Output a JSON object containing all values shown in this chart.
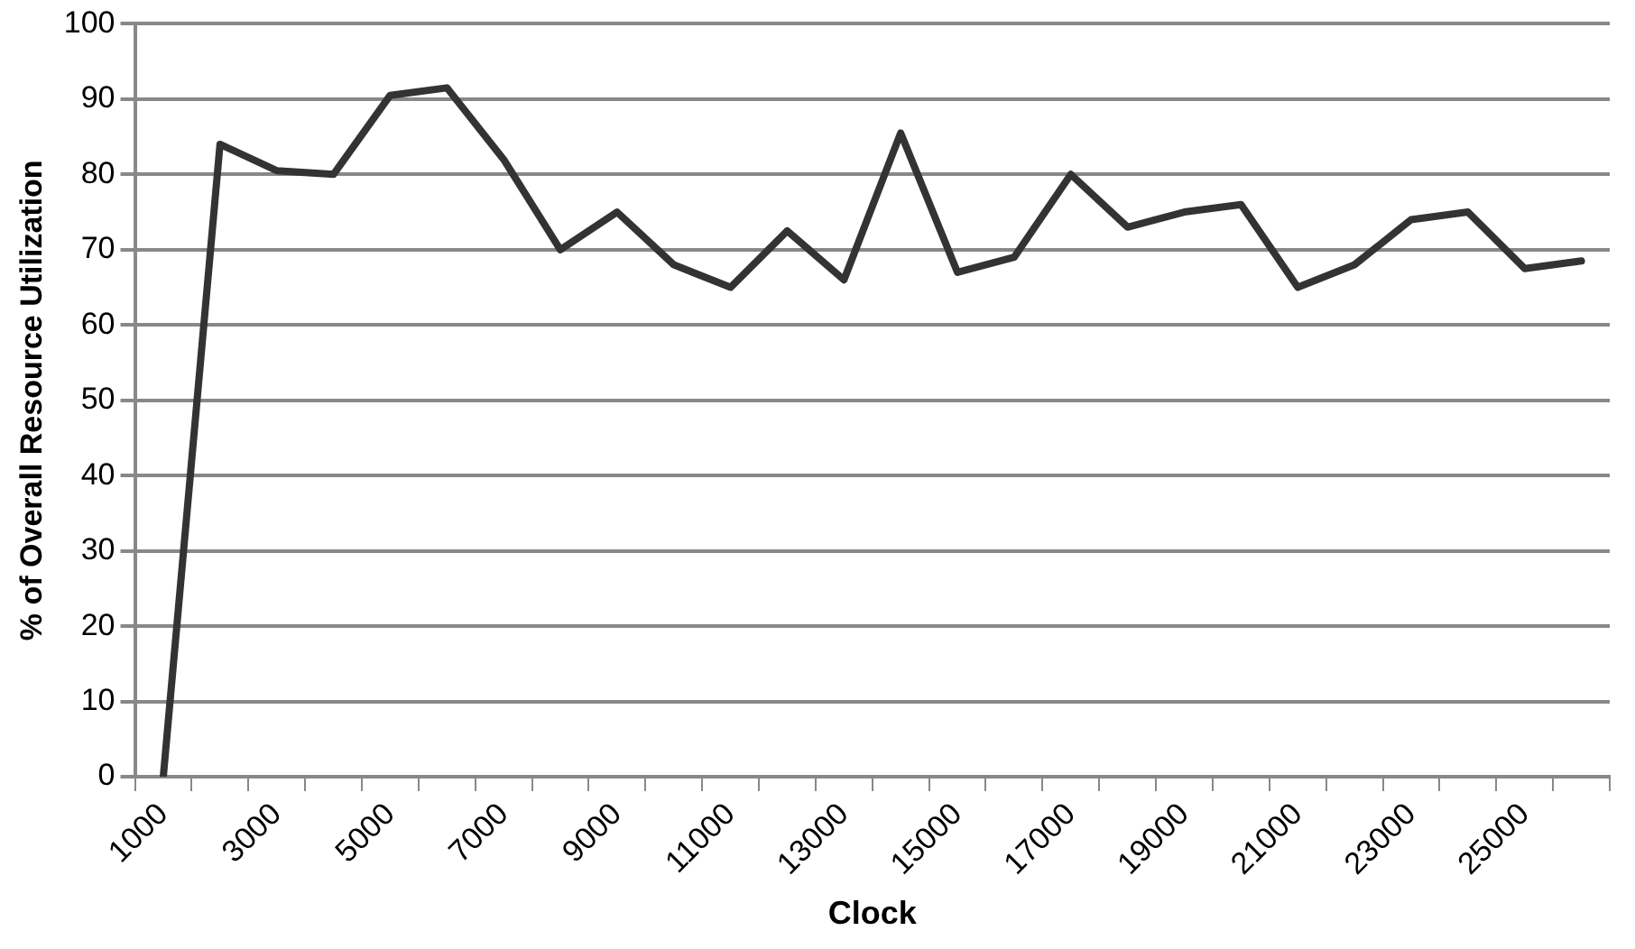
{
  "chart_data": {
    "type": "line",
    "xlabel": "Clock",
    "ylabel": "% of Overall Resource Utilization",
    "categories": [
      "1000",
      null,
      "3000",
      null,
      "5000",
      null,
      "7000",
      null,
      "9000",
      null,
      "11000",
      null,
      "13000",
      null,
      "15000",
      null,
      "17000",
      null,
      "19000",
      null,
      "21000",
      null,
      "23000",
      null,
      "25000",
      null
    ],
    "series": [
      {
        "color": "#333333",
        "values": [
          0,
          84,
          80.5,
          80,
          90.5,
          91.5,
          82,
          70,
          75,
          68,
          65,
          72.5,
          66,
          85.5,
          67,
          69,
          80,
          73,
          75,
          76,
          65,
          68,
          74,
          75,
          67.5,
          68.5
        ]
      }
    ],
    "ylim": [
      0,
      100
    ],
    "yticks": [
      0,
      10,
      20,
      30,
      40,
      50,
      60,
      70,
      80,
      90,
      100
    ],
    "grid": "y",
    "legend": false,
    "marker": "none",
    "line_style": "solid"
  }
}
